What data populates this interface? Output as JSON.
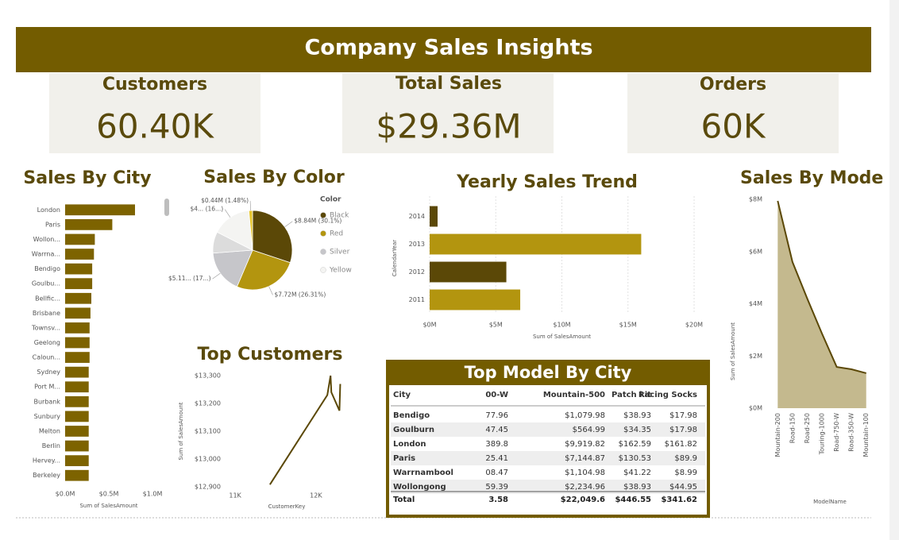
{
  "header": {
    "title": "Company Sales Insights"
  },
  "cards": [
    {
      "label": "Customers",
      "value": "60.40K"
    },
    {
      "label": "Total Sales",
      "value": "$29.36M"
    },
    {
      "label": "Orders",
      "value": "60K"
    }
  ],
  "chart_data": [
    {
      "type": "hbar",
      "title": "Sales By City",
      "x_label": "Sum of SalesAmount",
      "categories": [
        "London",
        "Paris",
        "Wollon...",
        "Warrna...",
        "Bendigo",
        "Goulbu...",
        "Bellfic...",
        "Brisbane",
        "Townsv...",
        "Geelong",
        "Caloun...",
        "Sydney",
        "Port M...",
        "Burbank",
        "Sunbury",
        "Melton",
        "Berlin",
        "Hervey...",
        "Berkeley"
      ],
      "values": [
        0.8,
        0.54,
        0.34,
        0.33,
        0.31,
        0.31,
        0.3,
        0.29,
        0.28,
        0.28,
        0.28,
        0.27,
        0.27,
        0.27,
        0.27,
        0.27,
        0.27,
        0.27,
        0.27
      ],
      "color": "#7d6300",
      "xlim": [
        0,
        1.0
      ],
      "xticks": [
        {
          "value": 0,
          "label": "$0.0M"
        },
        {
          "value": 0.5,
          "label": "$0.5M"
        },
        {
          "value": 1.0,
          "label": "$1.0M"
        }
      ],
      "grid": false
    },
    {
      "type": "pie",
      "title": "Sales By Color",
      "legend_title": "Color",
      "categories": [
        "Black",
        "Red",
        "Silver",
        null,
        "Yellow",
        null
      ],
      "values": [
        8.84,
        7.72,
        5.11,
        2.55,
        4.7,
        0.44
      ],
      "value_labels": [
        "$8.84M (30.1%)",
        "$7.72M (26.31%)",
        "$5.11... (17...)",
        null,
        "$4... (16...)",
        "$0.44M (1.48%)"
      ],
      "colors": [
        "#5b4807",
        "#b3950f",
        "#c6c6ca",
        "#dcdcdc",
        "#f4f4f2",
        "#e6c52c"
      ]
    },
    {
      "type": "hbar",
      "title": "Yearly Sales Trend",
      "x_label": "Sum of SalesAmount",
      "y_label": "CalendarYear",
      "categories": [
        "2014",
        "2013",
        "2012",
        "2011"
      ],
      "values": [
        0.6,
        16.0,
        5.8,
        6.85
      ],
      "colors": [
        "#5b4807",
        "#b3950f",
        "#5b4807",
        "#b3950f"
      ],
      "xlim": [
        0,
        20
      ],
      "xticks": [
        {
          "value": 0,
          "label": "$0M"
        },
        {
          "value": 5,
          "label": "$5M"
        },
        {
          "value": 10,
          "label": "$10M"
        },
        {
          "value": 15,
          "label": "$15M"
        },
        {
          "value": 20,
          "label": "$20M"
        }
      ],
      "grid": true
    },
    {
      "type": "line",
      "title": "Top Customers",
      "x_label": "CustomerKey",
      "y_label": "Sum of SalesAmount",
      "x": [
        11430,
        12140,
        12180,
        12190,
        12290,
        12300
      ],
      "values": [
        12908,
        13230,
        13300,
        13240,
        13174,
        13270
      ],
      "color": "#5b4807",
      "xlim": [
        10940,
        12335
      ],
      "ylim": [
        12900,
        13300
      ],
      "xticks": [
        {
          "value": 11000,
          "label": "11K"
        },
        {
          "value": 12000,
          "label": "12K"
        }
      ],
      "yticks": [
        {
          "value": 12900,
          "label": "$12,900"
        },
        {
          "value": 13000,
          "label": "$13,000"
        },
        {
          "value": 13100,
          "label": "$13,100"
        },
        {
          "value": 13200,
          "label": "$13,200"
        },
        {
          "value": 13300,
          "label": "$13,300"
        }
      ]
    },
    {
      "type": "area",
      "title": "Sales By Mode",
      "x_label": "ModelName",
      "y_label": "Sum of SalesAmount",
      "categories": [
        "Mountain-200",
        "Road-150",
        "Road-250",
        "Touring-1000",
        "Road-750-W",
        "Road-350-W",
        "Mountain-100"
      ],
      "values": [
        7.94,
        5.6,
        4.2,
        2.86,
        1.58,
        1.49,
        1.34
      ],
      "color": "#5b4807",
      "fill": "#c4b98e",
      "ylim": [
        0,
        8
      ],
      "yticks": [
        {
          "value": 0,
          "label": "$0M"
        },
        {
          "value": 2,
          "label": "$2M"
        },
        {
          "value": 4,
          "label": "$4M"
        },
        {
          "value": 6,
          "label": "$6M"
        },
        {
          "value": 8,
          "label": "$8M"
        }
      ]
    }
  ],
  "table": {
    "title": "Top Model By City",
    "columns": [
      "City",
      "00-W",
      "Mountain-500",
      "Patch kit",
      "Racing Socks"
    ],
    "rows": [
      [
        "Bendigo",
        "77.96",
        "$1,079.98",
        "$38.93",
        "$17.98"
      ],
      [
        "Goulburn",
        "47.45",
        "$564.99",
        "$34.35",
        "$17.98"
      ],
      [
        "London",
        "389.8",
        "$9,919.82",
        "$162.59",
        "$161.82"
      ],
      [
        "Paris",
        "25.41",
        "$7,144.87",
        "$130.53",
        "$89.9"
      ],
      [
        "Warrnambool",
        "08.47",
        "$1,104.98",
        "$41.22",
        "$8.99"
      ],
      [
        "Wollongong",
        "59.39",
        "$2,234.96",
        "$38.93",
        "$44.95"
      ]
    ],
    "total": [
      "Total",
      "3.58",
      "$22,049.6",
      "$446.55",
      "$341.62"
    ]
  }
}
